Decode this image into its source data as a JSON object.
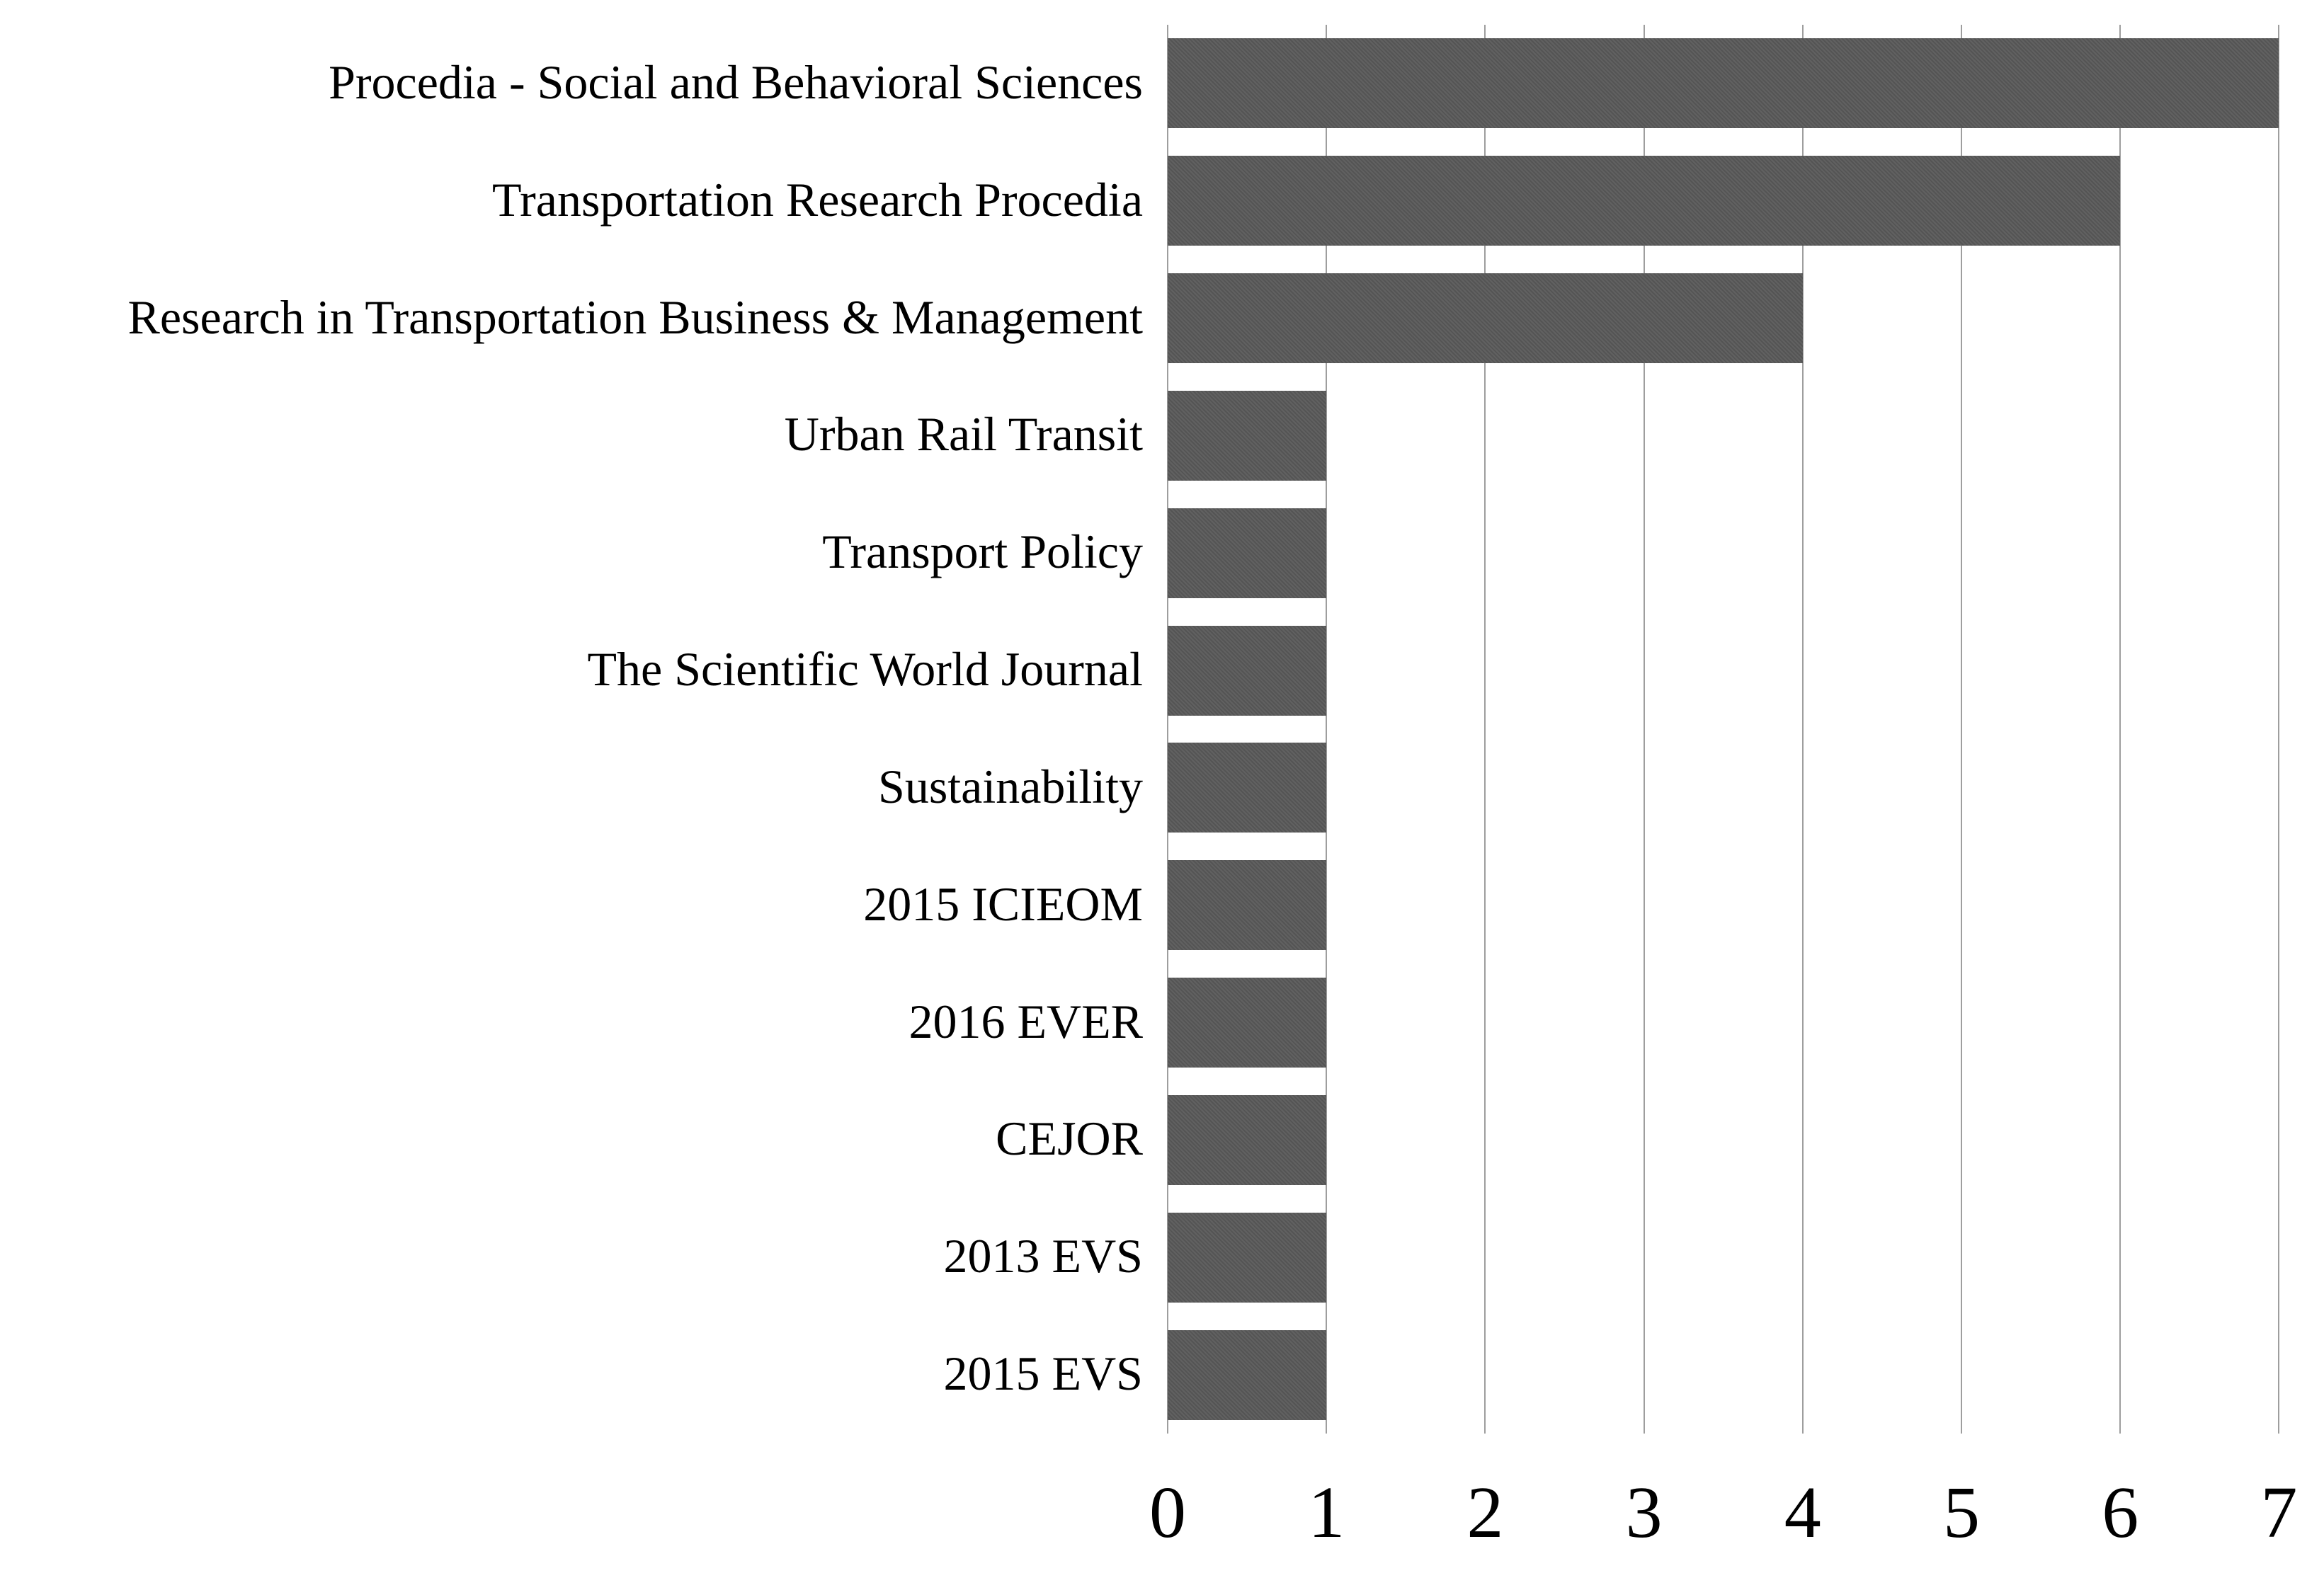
{
  "chart_data": {
    "type": "bar",
    "orientation": "horizontal",
    "title": "",
    "xlabel": "",
    "ylabel": "",
    "categories": [
      "Procedia - Social and Behavioral Sciences",
      "Transportation Research Procedia",
      "Research in Transportation Business & Management",
      "Urban Rail Transit",
      "Transport Policy",
      "The Scientific World Journal",
      "Sustainability",
      "2015 ICIEOM",
      "2016 EVER",
      "CEJOR",
      "2013 EVS",
      "2015 EVS"
    ],
    "values": [
      7,
      6,
      4,
      1,
      1,
      1,
      1,
      1,
      1,
      1,
      1,
      1
    ],
    "xlim": [
      0,
      7
    ],
    "xticks": [
      "0",
      "1",
      "2",
      "3",
      "4",
      "5",
      "6",
      "7"
    ],
    "grid": "vertical-only",
    "legend": "none",
    "colors": {
      "bar": "#595959",
      "gridline": "#9e9e9e",
      "text": "#000000",
      "background": "#ffffff"
    }
  }
}
